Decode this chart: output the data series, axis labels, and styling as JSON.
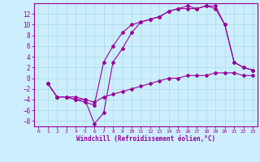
{
  "xlabel": "Windchill (Refroidissement éolien,°C)",
  "bg_color": "#cceeff",
  "line_color": "#990099",
  "grid_color": "#aadddd",
  "xlim": [
    -0.5,
    23.5
  ],
  "ylim": [
    -9,
    14
  ],
  "yticks": [
    -8,
    -6,
    -4,
    -2,
    0,
    2,
    4,
    6,
    8,
    10,
    12
  ],
  "xticks": [
    0,
    1,
    2,
    3,
    4,
    5,
    6,
    7,
    8,
    9,
    10,
    11,
    12,
    13,
    14,
    15,
    16,
    17,
    18,
    19,
    20,
    21,
    22,
    23
  ],
  "line1_x": [
    1,
    2,
    3,
    4,
    5,
    6,
    7,
    8,
    9,
    10,
    11,
    12,
    13,
    14,
    15,
    16,
    17,
    18,
    19,
    20,
    21,
    22,
    23
  ],
  "line1_y": [
    -1,
    -3.5,
    -3.5,
    -4,
    -4,
    -8.5,
    -6.5,
    3.0,
    5.5,
    8.5,
    10.5,
    11.0,
    11.5,
    12.5,
    13.0,
    13.5,
    13.0,
    13.5,
    13.5,
    10.0,
    3.0,
    2.0,
    1.5
  ],
  "line2_x": [
    1,
    2,
    3,
    4,
    5,
    6,
    7,
    8,
    9,
    10,
    11,
    12,
    13,
    14,
    15,
    16,
    17,
    18,
    19,
    20,
    21,
    22,
    23
  ],
  "line2_y": [
    -1,
    -3.5,
    -3.5,
    -4.0,
    -4.5,
    -5.0,
    3.0,
    6.0,
    8.5,
    10.0,
    10.5,
    11.0,
    11.5,
    12.5,
    13.0,
    13.0,
    13.0,
    13.5,
    13.0,
    10.0,
    3.0,
    2.0,
    1.5
  ],
  "line3_x": [
    1,
    2,
    3,
    4,
    5,
    6,
    7,
    8,
    9,
    10,
    11,
    12,
    13,
    14,
    15,
    16,
    17,
    18,
    19,
    20,
    21,
    22,
    23
  ],
  "line3_y": [
    -1,
    -3.5,
    -3.5,
    -3.5,
    -4.0,
    -4.5,
    -3.5,
    -3.0,
    -2.5,
    -2.0,
    -1.5,
    -1.0,
    -0.5,
    0.0,
    0.0,
    0.5,
    0.5,
    0.5,
    1.0,
    1.0,
    1.0,
    0.5,
    0.5
  ],
  "font_family": "monospace"
}
